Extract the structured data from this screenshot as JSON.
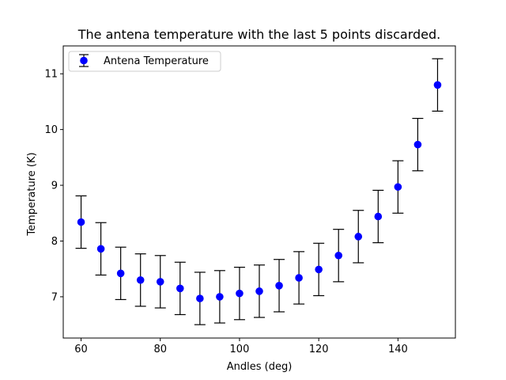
{
  "chart_data": {
    "type": "scatter",
    "title": "The antena temperature with the last 5 points discarded.",
    "xlabel": "Andles (deg)",
    "ylabel": "Temperature (K)",
    "xlim": [
      55.5,
      154.5
    ],
    "ylim": [
      6.26,
      11.5
    ],
    "xticks": [
      60,
      80,
      100,
      120,
      140
    ],
    "yticks": [
      7,
      8,
      9,
      10,
      11
    ],
    "grid": false,
    "legend_position": "upper-left",
    "series": [
      {
        "name": "Antena Temperature",
        "color": "#0000ff",
        "errorbar_color": "#000000",
        "x": [
          60,
          65,
          70,
          75,
          80,
          85,
          90,
          95,
          100,
          105,
          110,
          115,
          120,
          125,
          130,
          135,
          140,
          145,
          150
        ],
        "y": [
          8.34,
          7.86,
          7.42,
          7.3,
          7.27,
          7.15,
          6.97,
          7.0,
          7.06,
          7.1,
          7.2,
          7.34,
          7.49,
          7.74,
          8.08,
          8.44,
          8.97,
          9.73,
          10.8
        ],
        "yerr": [
          0.47,
          0.47,
          0.47,
          0.47,
          0.47,
          0.47,
          0.47,
          0.47,
          0.47,
          0.47,
          0.47,
          0.47,
          0.47,
          0.47,
          0.47,
          0.47,
          0.47,
          0.47,
          0.47
        ]
      }
    ]
  }
}
